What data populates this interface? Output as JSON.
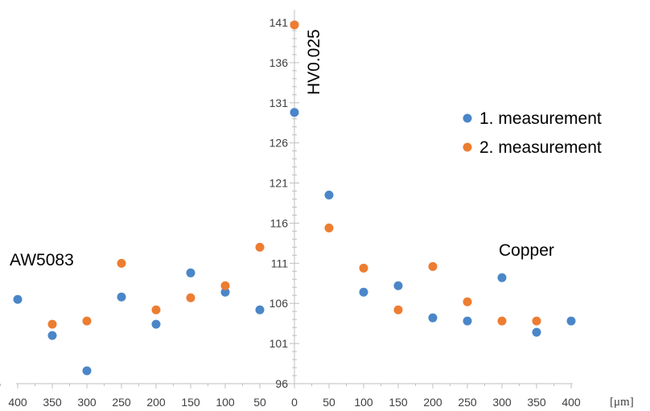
{
  "chart_data": {
    "type": "scatter",
    "ylabel": "HV0.025",
    "xunit": "[μm]",
    "left_region_label": "AW5083",
    "right_region_label": "Copper",
    "x_tick_labels": [
      "400",
      "350",
      "300",
      "250",
      "200",
      "150",
      "100",
      "50",
      "0",
      "50",
      "100",
      "150",
      "200",
      "250",
      "300",
      "350",
      "400"
    ],
    "y_ticks": [
      96,
      101,
      106,
      111,
      116,
      121,
      126,
      131,
      136,
      141
    ],
    "ylim": [
      96,
      142
    ],
    "legend_position": "top-right",
    "series": [
      {
        "name": "1. measurement",
        "color": "#4a86c8",
        "points": [
          {
            "x": -400,
            "y": 106.5
          },
          {
            "x": -350,
            "y": 102.0
          },
          {
            "x": -300,
            "y": 97.6
          },
          {
            "x": -250,
            "y": 106.8
          },
          {
            "x": -200,
            "y": 103.4
          },
          {
            "x": -150,
            "y": 109.8
          },
          {
            "x": -100,
            "y": 107.4
          },
          {
            "x": -50,
            "y": 105.2
          },
          {
            "x": 0,
            "y": 129.8
          },
          {
            "x": 50,
            "y": 119.5
          },
          {
            "x": 100,
            "y": 107.4
          },
          {
            "x": 150,
            "y": 108.2
          },
          {
            "x": 200,
            "y": 104.2
          },
          {
            "x": 250,
            "y": 103.8
          },
          {
            "x": 300,
            "y": 109.2
          },
          {
            "x": 350,
            "y": 102.4
          },
          {
            "x": 400,
            "y": 103.8
          }
        ]
      },
      {
        "name": "2. measurement",
        "color": "#ed7d31",
        "points": [
          {
            "x": -350,
            "y": 103.4
          },
          {
            "x": -300,
            "y": 103.8
          },
          {
            "x": -250,
            "y": 111.0
          },
          {
            "x": -200,
            "y": 105.2
          },
          {
            "x": -150,
            "y": 106.7
          },
          {
            "x": -100,
            "y": 108.2
          },
          {
            "x": -50,
            "y": 113.0
          },
          {
            "x": 0,
            "y": 140.7
          },
          {
            "x": 50,
            "y": 115.4
          },
          {
            "x": 100,
            "y": 110.4
          },
          {
            "x": 150,
            "y": 105.2
          },
          {
            "x": 200,
            "y": 110.6
          },
          {
            "x": 250,
            "y": 106.2
          },
          {
            "x": 300,
            "y": 103.8
          },
          {
            "x": 350,
            "y": 103.8
          }
        ]
      }
    ]
  }
}
